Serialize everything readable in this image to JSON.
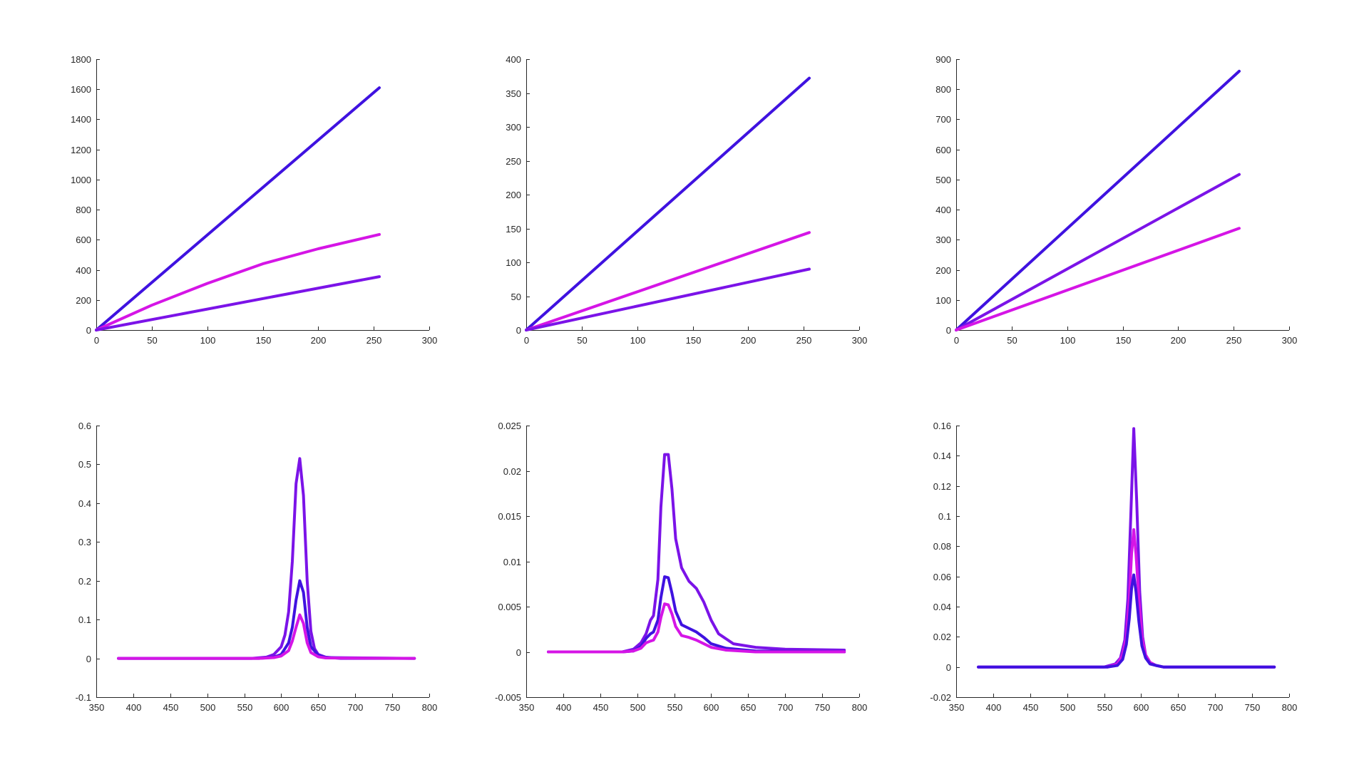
{
  "colors": {
    "blue": "#3f12e0",
    "violet": "#7b13e8",
    "magenta": "#d515e6"
  },
  "chart_data": [
    {
      "type": "line",
      "xlim": [
        0,
        300
      ],
      "ylim": [
        0,
        1800
      ],
      "xticks": [
        0,
        50,
        100,
        150,
        200,
        250,
        300
      ],
      "yticks": [
        0,
        200,
        400,
        600,
        800,
        1000,
        1200,
        1400,
        1600,
        1800
      ],
      "grid": false,
      "series": [
        {
          "color": "#3f12e0",
          "x": [
            0,
            255
          ],
          "y": [
            0,
            1610
          ]
        },
        {
          "color": "#d515e6",
          "x": [
            0,
            50,
            100,
            150,
            200,
            255
          ],
          "y": [
            0,
            165,
            310,
            440,
            540,
            635
          ]
        },
        {
          "color": "#7b13e8",
          "x": [
            0,
            255
          ],
          "y": [
            0,
            355
          ]
        }
      ]
    },
    {
      "type": "line",
      "xlim": [
        0,
        300
      ],
      "ylim": [
        0,
        400
      ],
      "xticks": [
        0,
        50,
        100,
        150,
        200,
        250,
        300
      ],
      "yticks": [
        0,
        50,
        100,
        150,
        200,
        250,
        300,
        350,
        400
      ],
      "grid": false,
      "series": [
        {
          "color": "#3f12e0",
          "x": [
            0,
            255
          ],
          "y": [
            0,
            372
          ]
        },
        {
          "color": "#d515e6",
          "x": [
            0,
            255
          ],
          "y": [
            0,
            144
          ]
        },
        {
          "color": "#7b13e8",
          "x": [
            0,
            255
          ],
          "y": [
            0,
            90
          ]
        }
      ]
    },
    {
      "type": "line",
      "xlim": [
        0,
        300
      ],
      "ylim": [
        0,
        900
      ],
      "xticks": [
        0,
        50,
        100,
        150,
        200,
        250,
        300
      ],
      "yticks": [
        0,
        100,
        200,
        300,
        400,
        500,
        600,
        700,
        800,
        900
      ],
      "grid": false,
      "series": [
        {
          "color": "#3f12e0",
          "x": [
            0,
            255
          ],
          "y": [
            0,
            860
          ]
        },
        {
          "color": "#7b13e8",
          "x": [
            0,
            255
          ],
          "y": [
            0,
            517
          ]
        },
        {
          "color": "#d515e6",
          "x": [
            0,
            255
          ],
          "y": [
            0,
            338
          ]
        }
      ]
    },
    {
      "type": "line",
      "xlim": [
        350,
        800
      ],
      "ylim": [
        -0.1,
        0.6
      ],
      "xticks": [
        350,
        400,
        450,
        500,
        550,
        600,
        650,
        700,
        750,
        800
      ],
      "yticks": [
        -0.1,
        0,
        0.1,
        0.2,
        0.3,
        0.4,
        0.5,
        0.6
      ],
      "grid": false,
      "series": [
        {
          "color": "#7b13e8",
          "x": [
            380,
            560,
            580,
            590,
            600,
            605,
            610,
            615,
            620,
            625,
            630,
            635,
            640,
            645,
            650,
            660,
            680,
            780
          ],
          "y": [
            0,
            0,
            0.003,
            0.01,
            0.03,
            0.06,
            0.12,
            0.25,
            0.45,
            0.515,
            0.42,
            0.2,
            0.07,
            0.025,
            0.01,
            0.003,
            0,
            0
          ]
        },
        {
          "color": "#3f12e0",
          "x": [
            380,
            570,
            590,
            600,
            610,
            615,
            620,
            625,
            630,
            635,
            640,
            650,
            660,
            780
          ],
          "y": [
            0,
            0,
            0.003,
            0.01,
            0.04,
            0.08,
            0.15,
            0.2,
            0.17,
            0.08,
            0.03,
            0.008,
            0.002,
            0
          ]
        },
        {
          "color": "#d515e6",
          "x": [
            380,
            570,
            590,
            600,
            610,
            615,
            620,
            625,
            630,
            635,
            640,
            650,
            660,
            780
          ],
          "y": [
            0,
            0,
            0.002,
            0.006,
            0.02,
            0.045,
            0.08,
            0.112,
            0.09,
            0.04,
            0.015,
            0.004,
            0.001,
            0
          ]
        }
      ]
    },
    {
      "type": "line",
      "xlim": [
        350,
        800
      ],
      "ylim": [
        -0.005,
        0.025
      ],
      "xticks": [
        350,
        400,
        450,
        500,
        550,
        600,
        650,
        700,
        750,
        800
      ],
      "yticks": [
        -0.005,
        0,
        0.005,
        0.01,
        0.015,
        0.02,
        0.025
      ],
      "grid": false,
      "series": [
        {
          "color": "#7b13e8",
          "x": [
            380,
            480,
            495,
            505,
            512,
            518,
            522,
            528,
            532,
            537,
            542,
            547,
            552,
            560,
            570,
            580,
            590,
            600,
            610,
            630,
            660,
            700,
            780
          ],
          "y": [
            0,
            0,
            0.0003,
            0.001,
            0.002,
            0.0035,
            0.004,
            0.008,
            0.016,
            0.0218,
            0.0218,
            0.018,
            0.0125,
            0.0093,
            0.0078,
            0.007,
            0.0055,
            0.0035,
            0.002,
            0.0009,
            0.0005,
            0.0003,
            0.0002
          ]
        },
        {
          "color": "#3f12e0",
          "x": [
            380,
            480,
            495,
            505,
            512,
            518,
            522,
            528,
            532,
            537,
            542,
            547,
            552,
            560,
            570,
            580,
            590,
            600,
            620,
            660,
            780
          ],
          "y": [
            0,
            0,
            0.0001,
            0.0006,
            0.0015,
            0.002,
            0.0022,
            0.0035,
            0.006,
            0.0083,
            0.0082,
            0.0065,
            0.0045,
            0.003,
            0.0026,
            0.0022,
            0.0016,
            0.0009,
            0.0004,
            0.0001,
            0
          ]
        },
        {
          "color": "#d515e6",
          "x": [
            380,
            480,
            495,
            505,
            512,
            518,
            522,
            528,
            532,
            537,
            542,
            547,
            552,
            560,
            570,
            580,
            590,
            600,
            620,
            660,
            780
          ],
          "y": [
            0,
            0,
            0.0001,
            0.0004,
            0.001,
            0.0012,
            0.0013,
            0.0022,
            0.0038,
            0.0053,
            0.0052,
            0.0042,
            0.0028,
            0.0018,
            0.0016,
            0.0013,
            0.0009,
            0.0005,
            0.0002,
            0,
            0
          ]
        }
      ]
    },
    {
      "type": "line",
      "xlim": [
        350,
        800
      ],
      "ylim": [
        -0.02,
        0.16
      ],
      "xticks": [
        350,
        400,
        450,
        500,
        550,
        600,
        650,
        700,
        750,
        800
      ],
      "yticks": [
        -0.02,
        0,
        0.02,
        0.04,
        0.06,
        0.08,
        0.1,
        0.12,
        0.14,
        0.16
      ],
      "grid": false,
      "series": [
        {
          "color": "#7b13e8",
          "x": [
            380,
            550,
            565,
            572,
            578,
            582,
            586,
            590,
            594,
            598,
            602,
            606,
            612,
            620,
            630,
            780
          ],
          "y": [
            0,
            0,
            0.002,
            0.006,
            0.018,
            0.045,
            0.1,
            0.158,
            0.11,
            0.05,
            0.02,
            0.008,
            0.003,
            0.001,
            0,
            0
          ]
        },
        {
          "color": "#d515e6",
          "x": [
            380,
            555,
            568,
            575,
            580,
            584,
            587,
            590,
            593,
            597,
            601,
            606,
            612,
            620,
            630,
            780
          ],
          "y": [
            0,
            0,
            0.002,
            0.008,
            0.02,
            0.045,
            0.075,
            0.091,
            0.075,
            0.045,
            0.02,
            0.008,
            0.003,
            0.001,
            0,
            0
          ]
        },
        {
          "color": "#3f12e0",
          "x": [
            380,
            555,
            568,
            575,
            580,
            584,
            587,
            590,
            593,
            597,
            601,
            606,
            612,
            620,
            630,
            780
          ],
          "y": [
            0,
            0,
            0.001,
            0.005,
            0.015,
            0.032,
            0.052,
            0.061,
            0.05,
            0.03,
            0.014,
            0.006,
            0.002,
            0.001,
            0,
            0
          ]
        }
      ]
    }
  ]
}
